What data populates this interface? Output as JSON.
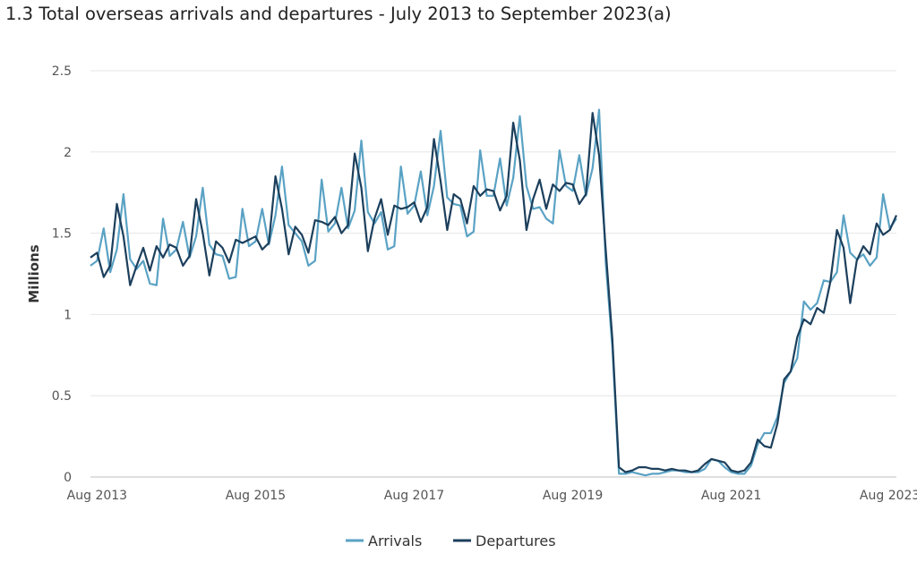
{
  "chart_data": {
    "type": "line",
    "title": "1.3 Total overseas arrivals and departures - July 2013 to September 2023(a)",
    "ylabel": "Millions",
    "xlabel": "",
    "ylim": [
      0,
      2.5
    ],
    "yticks": [
      0,
      0.5,
      1,
      1.5,
      2,
      2.5
    ],
    "ytick_labels": [
      "0",
      "0.5",
      "1",
      "1.5",
      "2",
      "2.5"
    ],
    "xticks": [
      {
        "label": "Aug 2013",
        "month_index": 1
      },
      {
        "label": "Aug 2015",
        "month_index": 25
      },
      {
        "label": "Aug 2017",
        "month_index": 49
      },
      {
        "label": "Aug 2019",
        "month_index": 73
      },
      {
        "label": "Aug 2021",
        "month_index": 97
      },
      {
        "label": "Aug 2023",
        "month_index": 121
      }
    ],
    "x_start": "Jul 2013",
    "x_end": "Sep 2023",
    "grid": "horizontal",
    "legend_position": "bottom",
    "series": [
      {
        "name": "Arrivals",
        "color": "#5aa2c4",
        "values": [
          1.3,
          1.33,
          1.53,
          1.26,
          1.4,
          1.74,
          1.34,
          1.28,
          1.33,
          1.19,
          1.18,
          1.59,
          1.36,
          1.4,
          1.57,
          1.35,
          1.48,
          1.78,
          1.43,
          1.37,
          1.36,
          1.22,
          1.23,
          1.65,
          1.42,
          1.45,
          1.65,
          1.43,
          1.61,
          1.91,
          1.55,
          1.5,
          1.45,
          1.3,
          1.33,
          1.83,
          1.51,
          1.56,
          1.78,
          1.53,
          1.64,
          2.07,
          1.63,
          1.56,
          1.63,
          1.4,
          1.42,
          1.91,
          1.62,
          1.67,
          1.88,
          1.61,
          1.79,
          2.13,
          1.72,
          1.68,
          1.67,
          1.48,
          1.51,
          2.01,
          1.73,
          1.73,
          1.96,
          1.67,
          1.84,
          2.22,
          1.79,
          1.65,
          1.66,
          1.59,
          1.56,
          2.01,
          1.79,
          1.76,
          1.98,
          1.73,
          1.9,
          2.26,
          1.32,
          0.8,
          0.02,
          0.02,
          0.03,
          0.02,
          0.01,
          0.02,
          0.02,
          0.03,
          0.04,
          0.04,
          0.03,
          0.03,
          0.03,
          0.05,
          0.11,
          0.1,
          0.06,
          0.03,
          0.02,
          0.02,
          0.07,
          0.2,
          0.27,
          0.27,
          0.37,
          0.58,
          0.65,
          0.73,
          1.08,
          1.03,
          1.07,
          1.21,
          1.2,
          1.26,
          1.61,
          1.38,
          1.34,
          1.37,
          1.3,
          1.35,
          1.74,
          1.53,
          1.59
        ]
      },
      {
        "name": "Departures",
        "color": "#1c3f5c",
        "values": [
          1.35,
          1.38,
          1.23,
          1.3,
          1.68,
          1.48,
          1.18,
          1.3,
          1.41,
          1.27,
          1.42,
          1.35,
          1.43,
          1.41,
          1.3,
          1.36,
          1.71,
          1.5,
          1.24,
          1.45,
          1.41,
          1.32,
          1.46,
          1.44,
          1.46,
          1.48,
          1.4,
          1.44,
          1.85,
          1.65,
          1.37,
          1.54,
          1.49,
          1.38,
          1.58,
          1.57,
          1.55,
          1.6,
          1.5,
          1.55,
          1.99,
          1.78,
          1.39,
          1.59,
          1.71,
          1.49,
          1.67,
          1.65,
          1.66,
          1.69,
          1.57,
          1.66,
          2.08,
          1.82,
          1.52,
          1.74,
          1.71,
          1.56,
          1.79,
          1.73,
          1.77,
          1.76,
          1.64,
          1.73,
          2.18,
          1.95,
          1.52,
          1.71,
          1.83,
          1.65,
          1.8,
          1.76,
          1.81,
          1.8,
          1.68,
          1.74,
          2.24,
          1.98,
          1.4,
          0.85,
          0.06,
          0.03,
          0.04,
          0.06,
          0.06,
          0.05,
          0.05,
          0.04,
          0.05,
          0.04,
          0.04,
          0.03,
          0.04,
          0.08,
          0.11,
          0.1,
          0.09,
          0.04,
          0.03,
          0.04,
          0.09,
          0.23,
          0.19,
          0.18,
          0.33,
          0.6,
          0.65,
          0.86,
          0.97,
          0.94,
          1.04,
          1.01,
          1.2,
          1.52,
          1.41,
          1.07,
          1.33,
          1.42,
          1.37,
          1.56,
          1.49,
          1.52,
          1.61
        ]
      }
    ]
  }
}
